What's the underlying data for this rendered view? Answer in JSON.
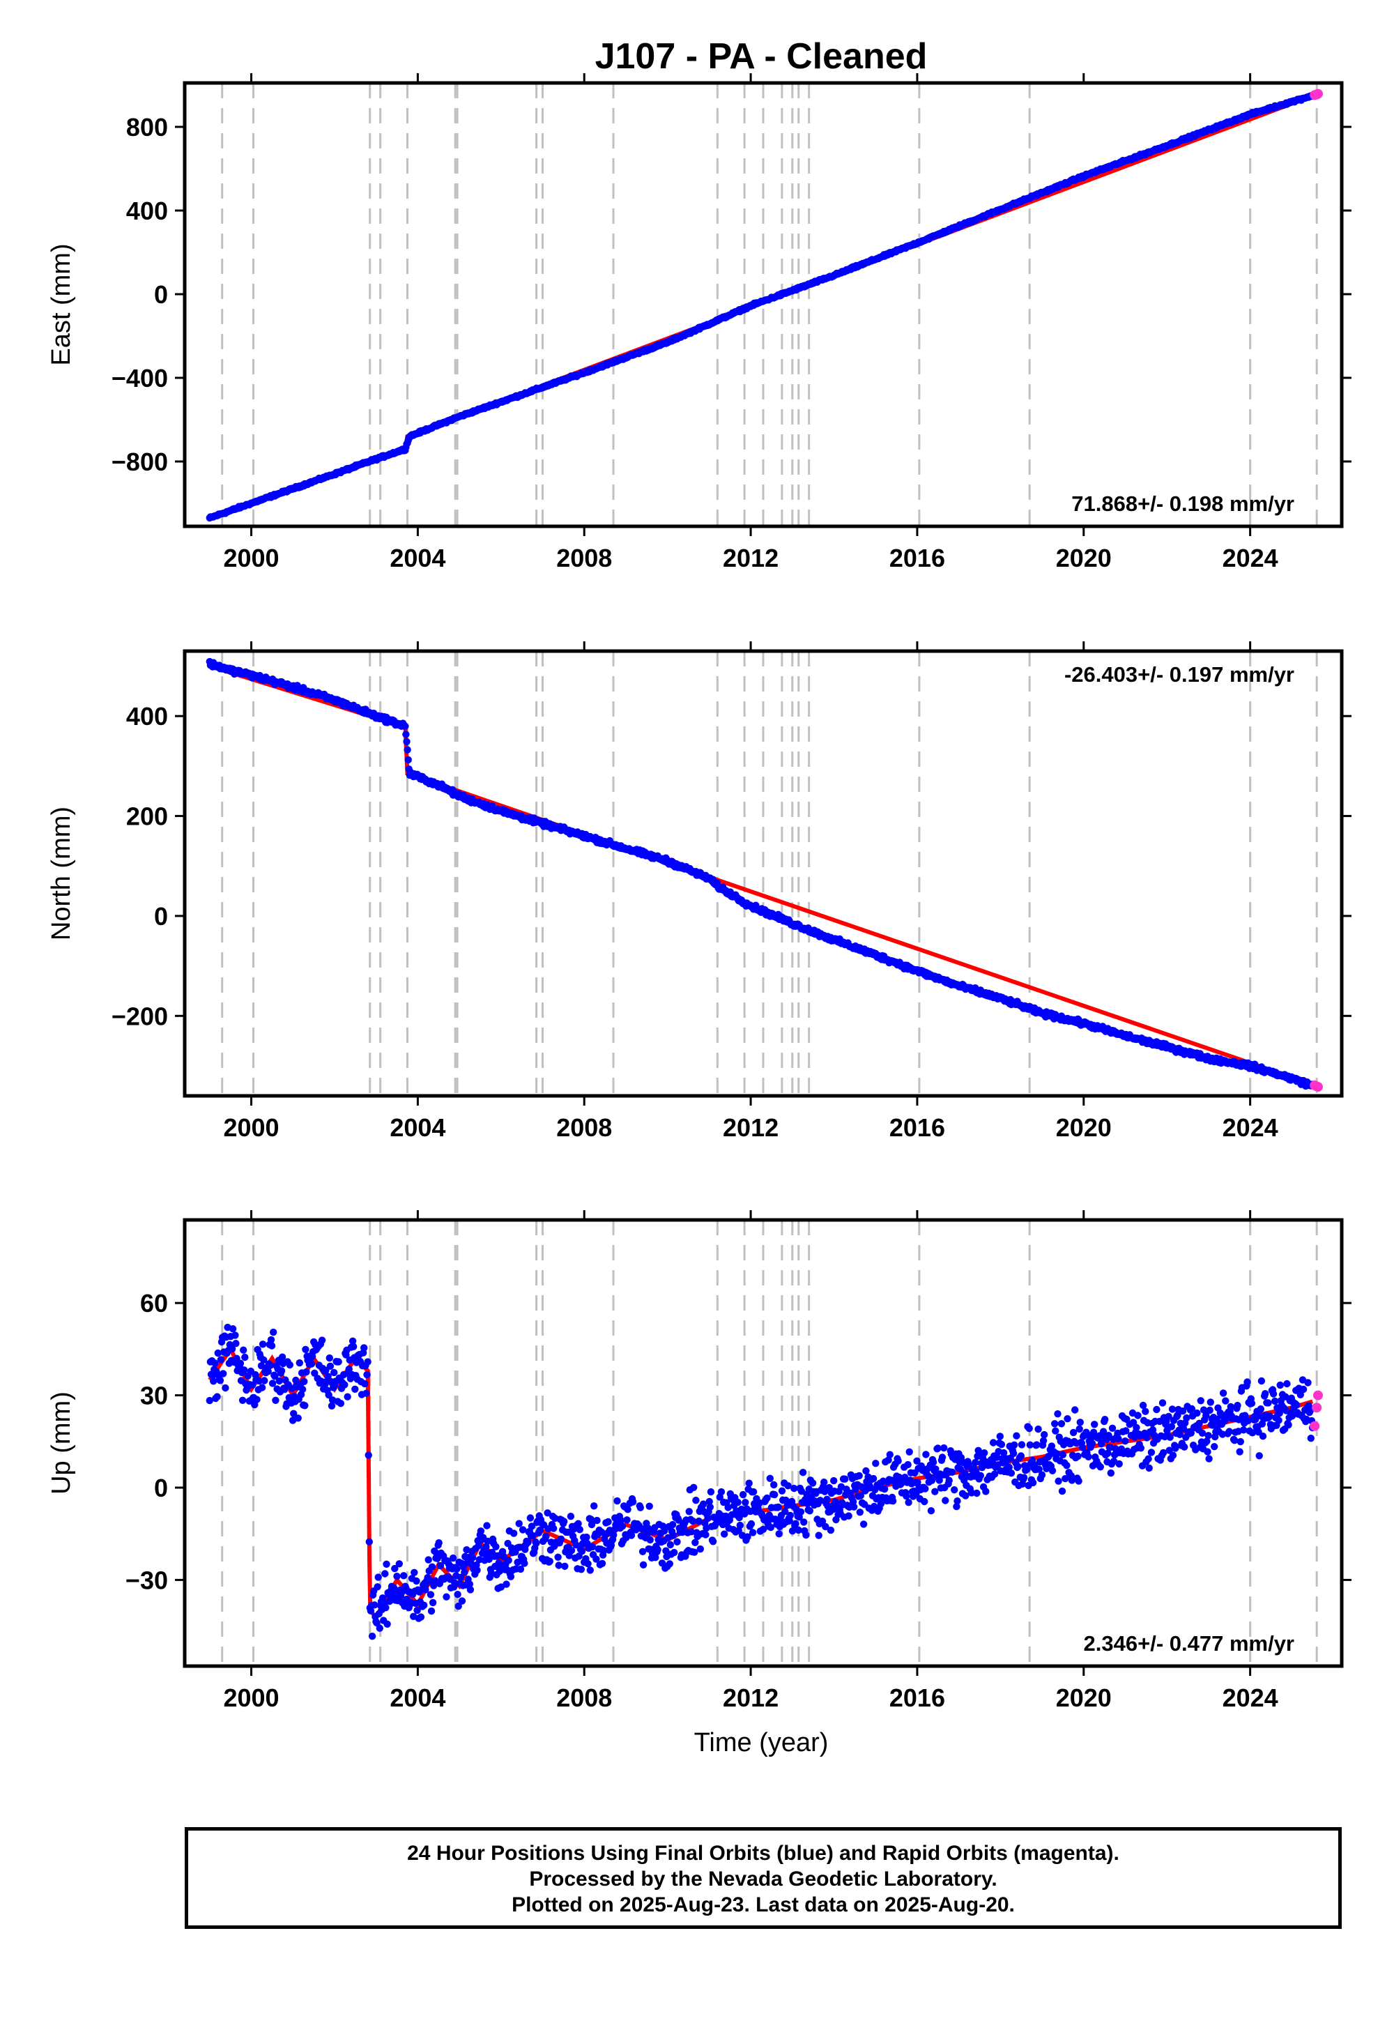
{
  "title": "J107  - PA - Cleaned",
  "xlabel": "Time (year)",
  "footer": {
    "line1": "24 Hour Positions Using Final Orbits (blue) and Rapid Orbits (magenta).",
    "line2": "Processed by the Nevada Geodetic Laboratory.",
    "line3": "Plotted on 2025-Aug-23. Last data on 2025-Aug-20."
  },
  "colors": {
    "final_orbits": "#0000ff",
    "rapid_orbits": "#ff33cc",
    "model": "#ff0000",
    "event_lines": "#c0c0c0"
  },
  "chart_data": [
    {
      "type": "scatter",
      "name": "east",
      "ylabel": "East (mm)",
      "rate_label": "71.868+/- 0.198 mm/yr",
      "rate_position": "bottom-right",
      "xlim": [
        1998.4,
        2026.2
      ],
      "ylim": [
        -1110,
        1010
      ],
      "xticks": [
        2000,
        2004,
        2008,
        2012,
        2016,
        2020,
        2024
      ],
      "yticks": [
        -800,
        -400,
        0,
        400,
        800
      ],
      "grid": false,
      "event_lines_x": [
        1999.3,
        2000.05,
        2002.85,
        2003.1,
        2003.75,
        2004.9,
        2004.95,
        2006.85,
        2007.0,
        2008.7,
        2011.2,
        2011.85,
        2012.3,
        2012.75,
        2013.0,
        2013.15,
        2013.4,
        2016.05,
        2018.7,
        2024.0,
        2025.6
      ],
      "series": [
        {
          "name": "Final Orbits",
          "color": "#0000ff",
          "x": [
            1999.0,
            2000.0,
            2001.0,
            2002.0,
            2002.9,
            2003.7,
            2003.8,
            2005.0,
            2006.0,
            2008.0,
            2010.0,
            2012.0,
            2014.0,
            2016.0,
            2018.0,
            2020.0,
            2022.0,
            2024.0,
            2025.5
          ],
          "y": [
            -1070,
            -1000,
            -930,
            -860,
            -795,
            -740,
            -680,
            -585,
            -515,
            -375,
            -230,
            -55,
            90,
            245,
            405,
            565,
            710,
            860,
            950
          ]
        },
        {
          "name": "Rapid Orbits",
          "color": "#ff33cc",
          "x": [
            2025.55,
            2025.6,
            2025.63
          ],
          "y": [
            952,
            955,
            958
          ]
        },
        {
          "name": "Model",
          "color": "#ff0000",
          "x": [
            1999.0,
            2003.7,
            2003.75,
            2025.6
          ],
          "y": [
            -1070,
            -740,
            -680,
            956
          ]
        }
      ]
    },
    {
      "type": "scatter",
      "name": "north",
      "ylabel": "North (mm)",
      "rate_label": "-26.403+/- 0.197 mm/yr",
      "rate_position": "top-right",
      "xlim": [
        1998.4,
        2026.2
      ],
      "ylim": [
        -360,
        530
      ],
      "xticks": [
        2000,
        2004,
        2008,
        2012,
        2016,
        2020,
        2024
      ],
      "yticks": [
        -200,
        0,
        200,
        400
      ],
      "grid": false,
      "event_lines_x": [
        1999.3,
        2000.05,
        2002.85,
        2003.1,
        2003.75,
        2004.9,
        2004.95,
        2006.85,
        2007.0,
        2008.7,
        2011.2,
        2011.85,
        2012.3,
        2012.75,
        2013.0,
        2013.15,
        2013.4,
        2016.05,
        2018.7,
        2024.0,
        2025.6
      ],
      "series": [
        {
          "name": "Final Orbits",
          "color": "#0000ff",
          "x": [
            1999.0,
            1999.5,
            2000.0,
            2001.0,
            2002.0,
            2003.0,
            2003.7,
            2003.8,
            2004.5,
            2005.0,
            2006.0,
            2007.0,
            2008.0,
            2009.0,
            2010.0,
            2011.0,
            2011.2,
            2012.0,
            2013.0,
            2014.0,
            2015.0,
            2016.0,
            2017.0,
            2018.0,
            2019.0,
            2020.0,
            2021.0,
            2022.0,
            2023.0,
            2024.0,
            2025.0,
            2025.5
          ],
          "y": [
            505,
            492,
            482,
            458,
            432,
            400,
            380,
            285,
            262,
            240,
            210,
            185,
            160,
            135,
            110,
            75,
            60,
            20,
            -15,
            -48,
            -78,
            -110,
            -140,
            -165,
            -195,
            -215,
            -240,
            -262,
            -285,
            -300,
            -325,
            -340
          ]
        },
        {
          "name": "Rapid Orbits",
          "color": "#ff33cc",
          "x": [
            2025.55,
            2025.6,
            2025.63
          ],
          "y": [
            -339,
            -341,
            -342
          ]
        },
        {
          "name": "Model",
          "color": "#ff0000",
          "x": [
            1999.0,
            2003.7,
            2003.75,
            2025.6
          ],
          "y": [
            500,
            378,
            285,
            -340
          ]
        }
      ]
    },
    {
      "type": "scatter",
      "name": "up",
      "ylabel": "Up (mm)",
      "rate_label": "2.346+/- 0.477 mm/yr",
      "rate_position": "bottom-right",
      "xlim": [
        1998.4,
        2026.2
      ],
      "ylim": [
        -58,
        87
      ],
      "xticks": [
        2000,
        2004,
        2008,
        2012,
        2016,
        2020,
        2024
      ],
      "yticks": [
        -30,
        0,
        30,
        60
      ],
      "grid": false,
      "event_lines_x": [
        1999.3,
        2000.05,
        2002.85,
        2003.1,
        2003.75,
        2004.9,
        2004.95,
        2006.85,
        2007.0,
        2008.7,
        2011.2,
        2011.85,
        2012.3,
        2012.75,
        2013.0,
        2013.15,
        2013.4,
        2016.05,
        2018.7,
        2024.0,
        2025.6
      ],
      "series": [
        {
          "name": "Final Orbits",
          "color": "#0000ff",
          "x": [
            1999.0,
            1999.5,
            2000.0,
            2000.5,
            2001.0,
            2001.5,
            2002.0,
            2002.5,
            2002.8,
            2002.85,
            2003.0,
            2003.5,
            2004.0,
            2004.5,
            2005.0,
            2005.5,
            2006.0,
            2007.0,
            2008.0,
            2009.0,
            2010.0,
            2011.0,
            2012.0,
            2013.0,
            2014.0,
            2015.0,
            2016.0,
            2017.0,
            2018.0,
            2019.0,
            2020.0,
            2021.0,
            2022.0,
            2023.0,
            2024.0,
            2025.0,
            2025.5
          ],
          "y": [
            35,
            45,
            32,
            42,
            30,
            42,
            32,
            42,
            38,
            -40,
            -42,
            -30,
            -38,
            -25,
            -32,
            -18,
            -24,
            -14,
            -20,
            -12,
            -17,
            -10,
            -8,
            -6,
            -4,
            0,
            3,
            5,
            8,
            10,
            13,
            15,
            17,
            20,
            23,
            26,
            28
          ]
        },
        {
          "name": "Rapid Orbits",
          "color": "#ff33cc",
          "x": [
            2025.55,
            2025.6,
            2025.63
          ],
          "y": [
            20,
            26,
            30
          ]
        },
        {
          "name": "Model",
          "color": "#ff0000",
          "x": [
            1999.0,
            2002.8,
            2002.85,
            2025.6
          ],
          "y": [
            35,
            37,
            -41,
            32
          ]
        }
      ]
    }
  ]
}
